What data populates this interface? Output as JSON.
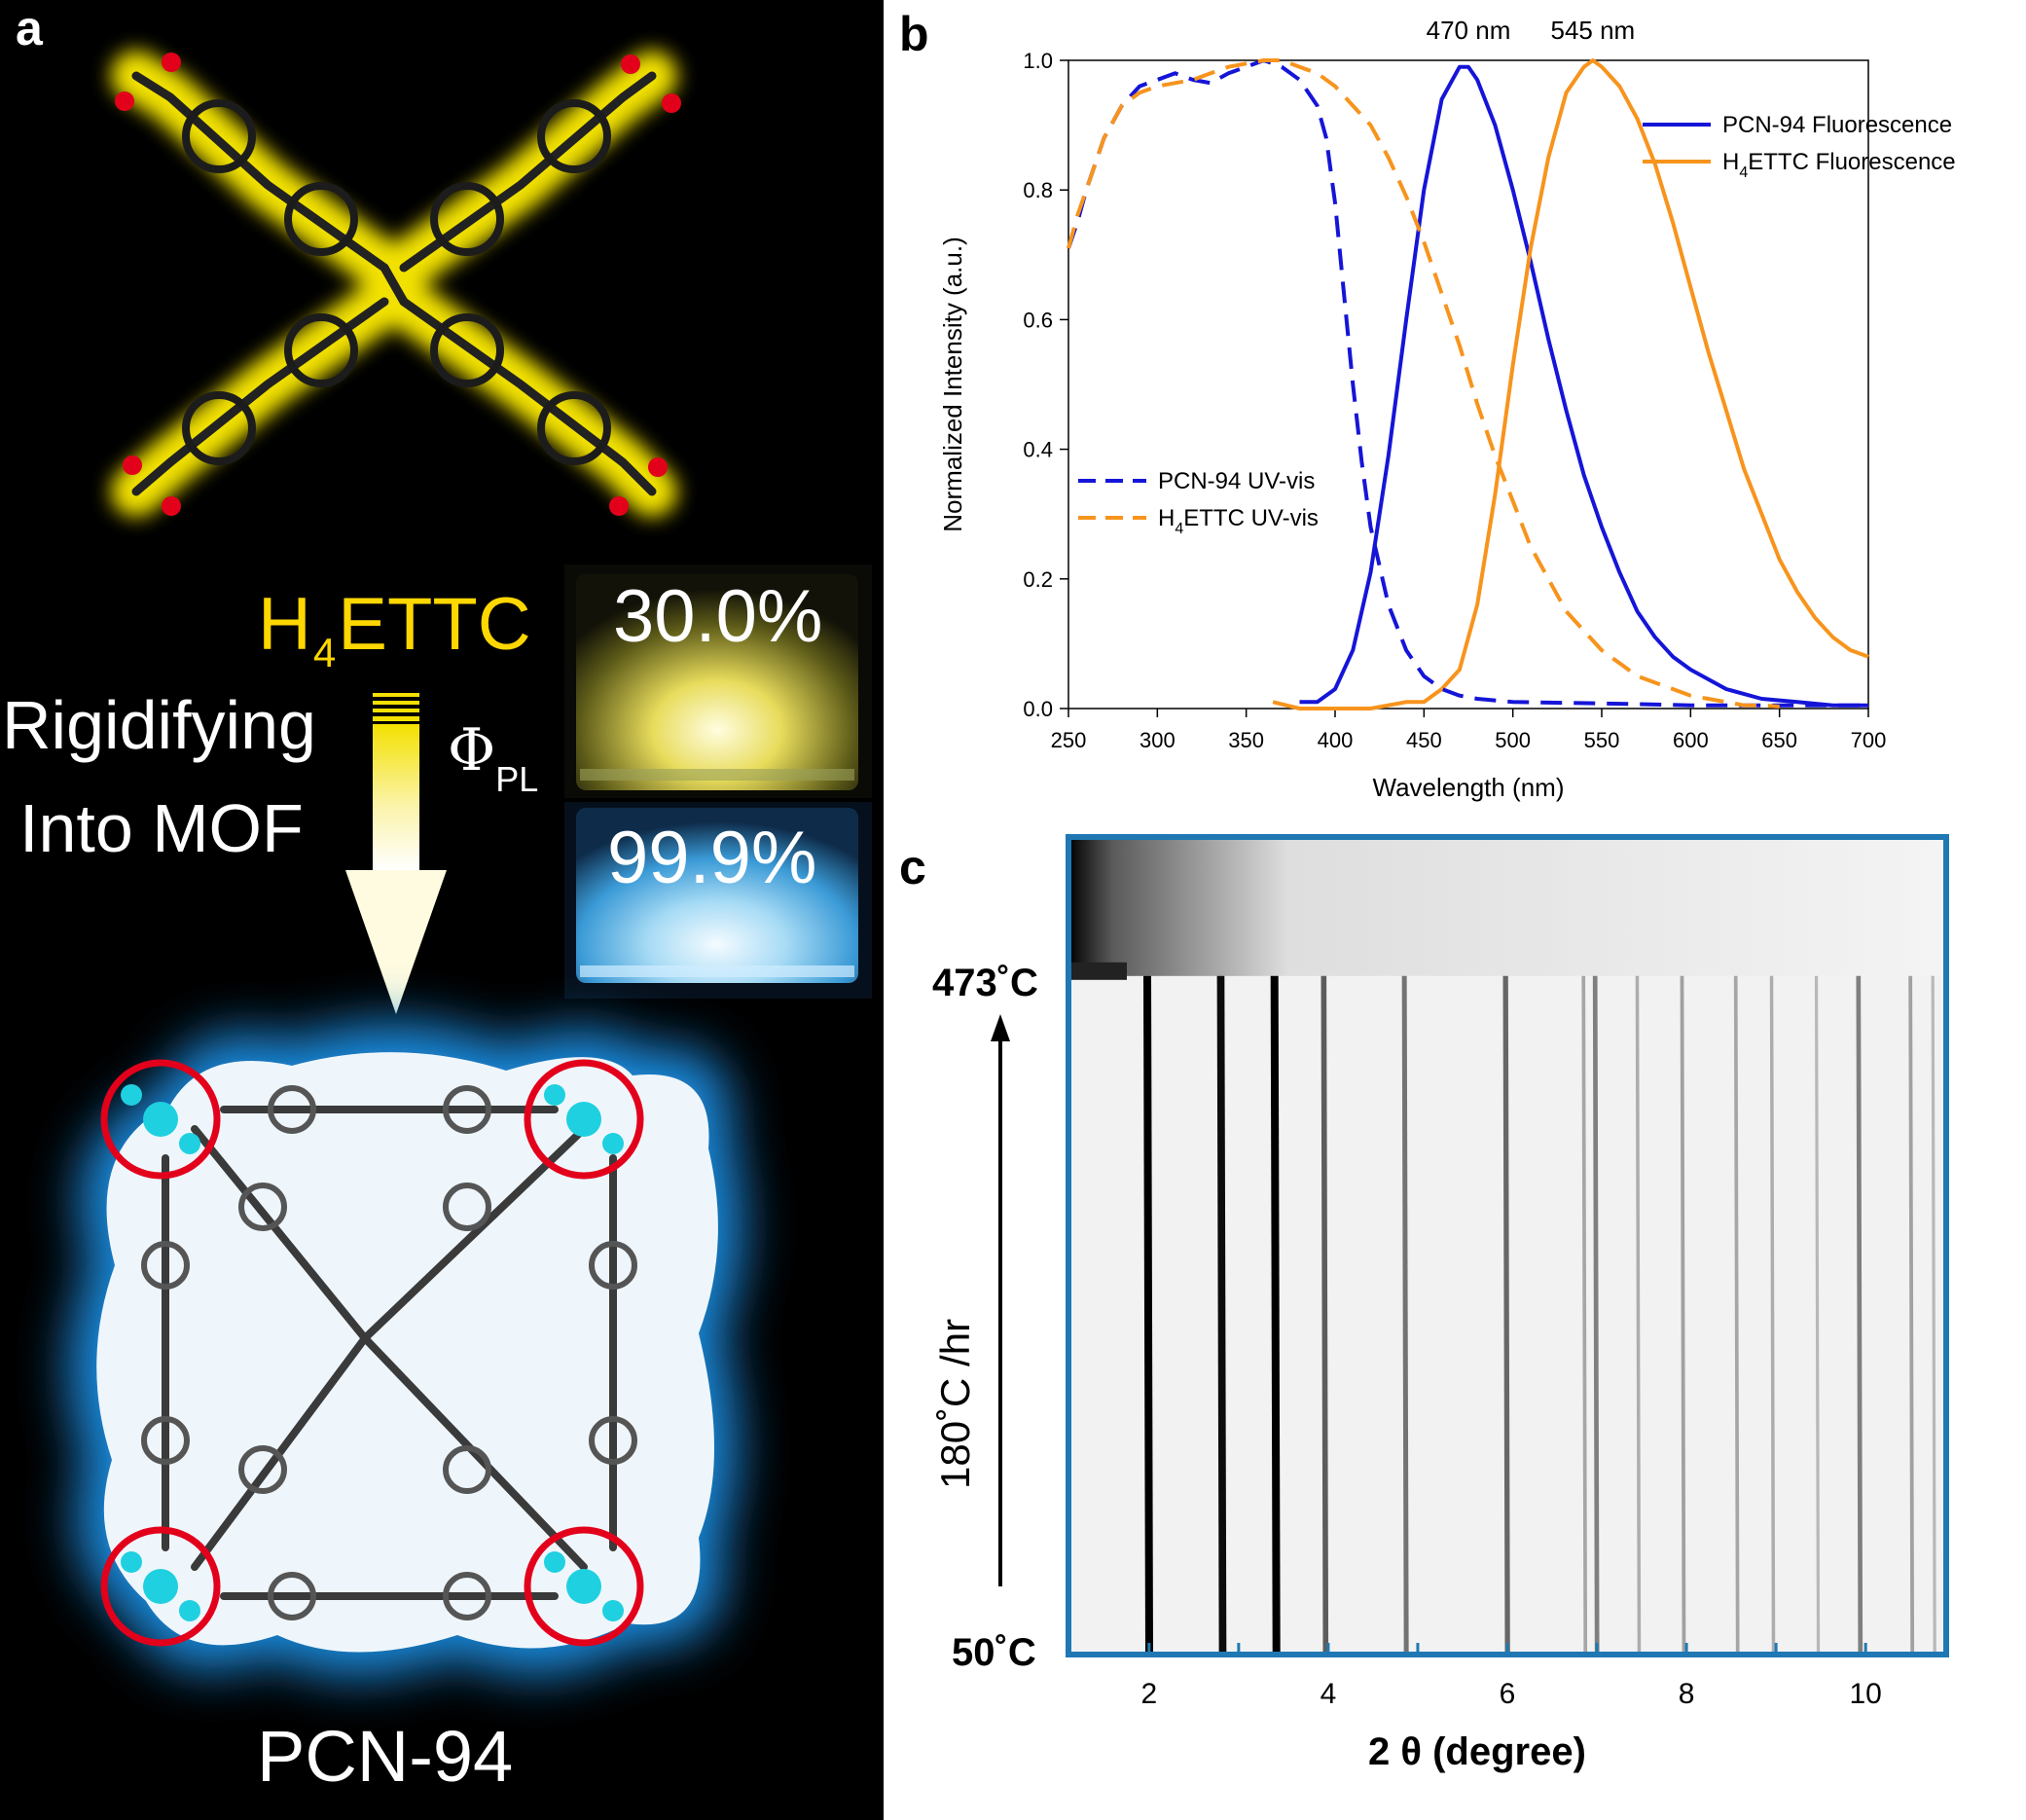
{
  "panel_a": {
    "letter": "a",
    "ligand_name": "H",
    "ligand_sub": "4",
    "ligand_rest": "ETTC",
    "process_line1": "Rigidifying",
    "process_line2": "Into MOF",
    "qy_symbol": "Φ",
    "qy_sub": "PL",
    "qy_ligand": "30.0%",
    "qy_mof": "99.9%",
    "mof_name": "PCN-94",
    "colors": {
      "ligand_glow": "#ffee00",
      "mof_glow": "#1e88e5",
      "oxygen": "#e3001b",
      "zirconium": "#1fd0e0"
    }
  },
  "chart_data": [
    {
      "panel": "b",
      "type": "line",
      "xlabel": "Wavelength (nm)",
      "ylabel": "Normalized Intensity (a.u.)",
      "xlim": [
        250,
        700
      ],
      "ylim": [
        0,
        1.0
      ],
      "xticks": [
        250,
        300,
        350,
        400,
        450,
        500,
        550,
        600,
        650,
        700
      ],
      "yticks": [
        0.0,
        0.2,
        0.4,
        0.6,
        0.8,
        1.0
      ],
      "grid": false,
      "annotations": [
        {
          "text": "470 nm",
          "x": 475,
          "y": 1.0
        },
        {
          "text": "545 nm",
          "x": 545,
          "y": 1.0
        }
      ],
      "legends": [
        {
          "placement": "top-right",
          "entries": [
            {
              "text": "PCN-94 Fluorescence",
              "sub": "",
              "color": "#1515d8",
              "dash": false
            },
            {
              "pre": "H",
              "sub": "4",
              "text": "ETTC Fluorescence",
              "color": "#f7941d",
              "dash": false
            }
          ]
        },
        {
          "placement": "center-left",
          "entries": [
            {
              "text": "PCN-94 UV-vis",
              "sub": "",
              "color": "#1515d8",
              "dash": true
            },
            {
              "pre": "H",
              "sub": "4",
              "text": "ETTC UV-vis",
              "color": "#f7941d",
              "dash": true
            }
          ]
        }
      ],
      "series": [
        {
          "name": "PCN-94 Fluorescence",
          "color": "#1515d8",
          "dash": false,
          "x": [
            380,
            390,
            400,
            410,
            420,
            430,
            440,
            450,
            460,
            470,
            475,
            480,
            490,
            500,
            510,
            520,
            530,
            540,
            550,
            560,
            570,
            580,
            590,
            600,
            620,
            640,
            660,
            680,
            700
          ],
          "y": [
            0.01,
            0.01,
            0.03,
            0.09,
            0.21,
            0.39,
            0.6,
            0.8,
            0.94,
            0.99,
            0.99,
            0.97,
            0.9,
            0.8,
            0.69,
            0.57,
            0.46,
            0.36,
            0.28,
            0.21,
            0.15,
            0.11,
            0.08,
            0.06,
            0.03,
            0.015,
            0.01,
            0.005,
            0.005
          ]
        },
        {
          "name": "H4ETTC Fluorescence",
          "color": "#f7941d",
          "dash": false,
          "x": [
            365,
            380,
            400,
            420,
            440,
            450,
            460,
            470,
            480,
            490,
            500,
            510,
            520,
            530,
            540,
            545,
            550,
            560,
            570,
            580,
            590,
            600,
            610,
            620,
            630,
            640,
            650,
            660,
            670,
            680,
            690,
            700
          ],
          "y": [
            0.01,
            0.0,
            0.0,
            0.0,
            0.01,
            0.01,
            0.03,
            0.06,
            0.16,
            0.33,
            0.53,
            0.71,
            0.85,
            0.95,
            0.99,
            1.0,
            0.99,
            0.96,
            0.91,
            0.84,
            0.75,
            0.65,
            0.55,
            0.46,
            0.37,
            0.3,
            0.23,
            0.18,
            0.14,
            0.11,
            0.09,
            0.08
          ]
        },
        {
          "name": "PCN-94 UV-vis",
          "color": "#1515d8",
          "dash": true,
          "x": [
            250,
            255,
            260,
            270,
            280,
            290,
            300,
            310,
            320,
            330,
            340,
            350,
            360,
            370,
            380,
            390,
            395,
            400,
            405,
            410,
            415,
            420,
            430,
            440,
            450,
            460,
            470,
            480,
            500,
            550,
            600,
            650,
            700
          ],
          "y": [
            0.71,
            0.75,
            0.8,
            0.88,
            0.93,
            0.96,
            0.97,
            0.98,
            0.97,
            0.965,
            0.98,
            0.99,
            1.0,
            0.99,
            0.97,
            0.93,
            0.88,
            0.78,
            0.64,
            0.5,
            0.38,
            0.28,
            0.16,
            0.09,
            0.05,
            0.03,
            0.02,
            0.015,
            0.01,
            0.008,
            0.005,
            0.005,
            0.005
          ]
        },
        {
          "name": "H4ETTC UV-vis",
          "color": "#f7941d",
          "dash": true,
          "x": [
            250,
            255,
            260,
            270,
            280,
            290,
            300,
            310,
            320,
            330,
            340,
            350,
            360,
            370,
            380,
            390,
            400,
            410,
            420,
            430,
            440,
            450,
            460,
            470,
            480,
            490,
            500,
            510,
            520,
            530,
            540,
            550,
            560,
            570,
            580,
            590,
            600,
            610,
            620,
            630,
            640,
            650
          ],
          "y": [
            0.71,
            0.76,
            0.8,
            0.88,
            0.93,
            0.95,
            0.96,
            0.965,
            0.97,
            0.98,
            0.99,
            0.995,
            1.0,
            1.0,
            0.99,
            0.98,
            0.96,
            0.93,
            0.9,
            0.85,
            0.79,
            0.72,
            0.64,
            0.56,
            0.47,
            0.39,
            0.32,
            0.25,
            0.2,
            0.15,
            0.12,
            0.09,
            0.07,
            0.05,
            0.04,
            0.03,
            0.02,
            0.015,
            0.01,
            0.005,
            0.005,
            0.003
          ]
        }
      ]
    },
    {
      "panel": "c",
      "type": "heatmap",
      "xlabel": "2 θ (degree)",
      "xlim": [
        1.1,
        10.9
      ],
      "xticks": [
        2,
        4,
        6,
        8,
        10
      ],
      "y_label_top": "473˚C",
      "y_label_bottom": "50˚C",
      "rate_label": "180˚C /hr",
      "transition_fraction": 0.17,
      "frame_color": "#1f78b4",
      "peaks": [
        {
          "two_theta": 1.98,
          "intensity": 1.0
        },
        {
          "two_theta": 2.8,
          "intensity": 0.95
        },
        {
          "two_theta": 3.4,
          "intensity": 1.0
        },
        {
          "two_theta": 3.95,
          "intensity": 0.6
        },
        {
          "two_theta": 4.85,
          "intensity": 0.5
        },
        {
          "two_theta": 5.98,
          "intensity": 0.55
        },
        {
          "two_theta": 6.85,
          "intensity": 0.28
        },
        {
          "two_theta": 6.98,
          "intensity": 0.45
        },
        {
          "two_theta": 7.45,
          "intensity": 0.25
        },
        {
          "two_theta": 7.95,
          "intensity": 0.3
        },
        {
          "two_theta": 8.55,
          "intensity": 0.28
        },
        {
          "two_theta": 8.95,
          "intensity": 0.25
        },
        {
          "two_theta": 9.45,
          "intensity": 0.2
        },
        {
          "two_theta": 9.92,
          "intensity": 0.45
        },
        {
          "two_theta": 10.5,
          "intensity": 0.3
        },
        {
          "two_theta": 10.75,
          "intensity": 0.2
        }
      ]
    }
  ]
}
